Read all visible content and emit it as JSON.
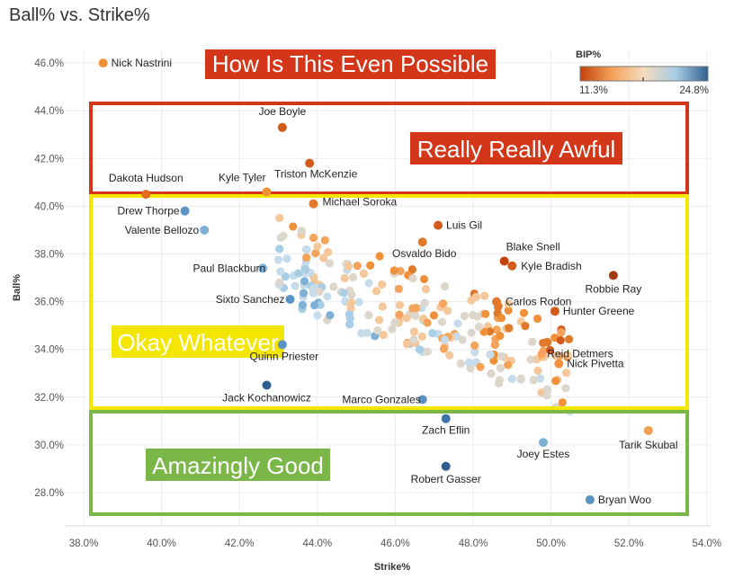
{
  "chart_data": {
    "type": "scatter",
    "title": "Ball% vs. Strike%",
    "xlabel": "Strike%",
    "ylabel": "Ball%",
    "xlim": [
      38.0,
      54.0
    ],
    "ylim": [
      27.0,
      47.0
    ],
    "x_ticks": [
      "38.0%",
      "40.0%",
      "42.0%",
      "44.0%",
      "46.0%",
      "48.0%",
      "50.0%",
      "52.0%",
      "54.0%"
    ],
    "y_ticks": [
      "28.0%",
      "30.0%",
      "32.0%",
      "34.0%",
      "36.0%",
      "38.0%",
      "40.0%",
      "42.0%",
      "44.0%",
      "46.0%"
    ],
    "color_legend": {
      "title": "BIP%",
      "min_label": "11.3%",
      "max_label": "24.8%",
      "colors": [
        "#c2410c",
        "#f5a25a",
        "#f4dcc0",
        "#a8cde4",
        "#2e5f8f"
      ]
    },
    "labeled_points": [
      {
        "name": "Nick Nastrini",
        "x": 38.5,
        "y": 46.0,
        "color": "#f0913a"
      },
      {
        "name": "Joe Boyle",
        "x": 43.1,
        "y": 43.3,
        "color": "#d25a1a"
      },
      {
        "name": "Triston McKenzie",
        "x": 43.8,
        "y": 41.8,
        "color": "#d25a1a"
      },
      {
        "name": "Dakota Hudson",
        "x": 39.6,
        "y": 40.5,
        "color": "#e06a20"
      },
      {
        "name": "Kyle Tyler",
        "x": 42.7,
        "y": 40.6,
        "color": "#f0913a"
      },
      {
        "name": "Drew Thorpe",
        "x": 40.6,
        "y": 39.8,
        "color": "#5b93c4"
      },
      {
        "name": "Valente Bellozo",
        "x": 41.1,
        "y": 39.0,
        "color": "#7fb0d6"
      },
      {
        "name": "Michael Soroka",
        "x": 43.9,
        "y": 40.1,
        "color": "#e07a2a"
      },
      {
        "name": "Luis Gil",
        "x": 47.1,
        "y": 39.2,
        "color": "#d25a1a"
      },
      {
        "name": "Osvaldo Bido",
        "x": 46.7,
        "y": 38.5,
        "color": "#e07a2a"
      },
      {
        "name": "Blake Snell",
        "x": 48.8,
        "y": 37.7,
        "color": "#c2410c"
      },
      {
        "name": "Kyle Bradish",
        "x": 49.0,
        "y": 37.5,
        "color": "#d25a1a"
      },
      {
        "name": "Paul Blackburn",
        "x": 42.6,
        "y": 37.4,
        "color": "#7fb0d6"
      },
      {
        "name": "Robbie Ray",
        "x": 51.6,
        "y": 37.1,
        "color": "#a33a14"
      },
      {
        "name": "Carlos Rodon",
        "x": 48.6,
        "y": 36.0,
        "color": "#e07a2a"
      },
      {
        "name": "Sixto Sanchez",
        "x": 43.3,
        "y": 36.1,
        "color": "#5b93c4"
      },
      {
        "name": "Hunter Greene",
        "x": 50.1,
        "y": 35.6,
        "color": "#d25a1a"
      },
      {
        "name": "Reid Detmers",
        "x": 49.9,
        "y": 34.3,
        "color": "#e07a2a"
      },
      {
        "name": "Quinn Priester",
        "x": 43.1,
        "y": 34.2,
        "color": "#5b93c4"
      },
      {
        "name": "Nick Pivetta",
        "x": 50.2,
        "y": 33.4,
        "color": "#f0913a"
      },
      {
        "name": "Jack Kochanowicz",
        "x": 42.7,
        "y": 32.5,
        "color": "#2e5f8f"
      },
      {
        "name": "Marco Gonzales",
        "x": 46.7,
        "y": 31.9,
        "color": "#5b93c4"
      },
      {
        "name": "Zach Eflin",
        "x": 47.3,
        "y": 31.1,
        "color": "#3e73a8"
      },
      {
        "name": "Tarik Skubal",
        "x": 52.5,
        "y": 30.6,
        "color": "#f0a050"
      },
      {
        "name": "Joey Estes",
        "x": 49.8,
        "y": 30.1,
        "color": "#7fb0d6"
      },
      {
        "name": "Robert Gasser",
        "x": 47.3,
        "y": 29.1,
        "color": "#2e5f8f"
      },
      {
        "name": "Bryan Woo",
        "x": 51.0,
        "y": 27.7,
        "color": "#5b93c4"
      }
    ],
    "zones": [
      {
        "label": "How Is This Even Possible",
        "bg": "#d4361a",
        "fg": "#ffffff",
        "style": "label-only"
      },
      {
        "label": "Really Really Awful",
        "bg": "#d4361a",
        "fg": "#ffffff",
        "border": "#d4361a"
      },
      {
        "label": "Okay Whatever",
        "bg": "#f3e600",
        "fg": "#ffffff",
        "border": "#f3e600"
      },
      {
        "label": "Amazingly Good",
        "bg": "#7ab648",
        "fg": "#ffffff",
        "border": "#7ab648"
      }
    ]
  }
}
